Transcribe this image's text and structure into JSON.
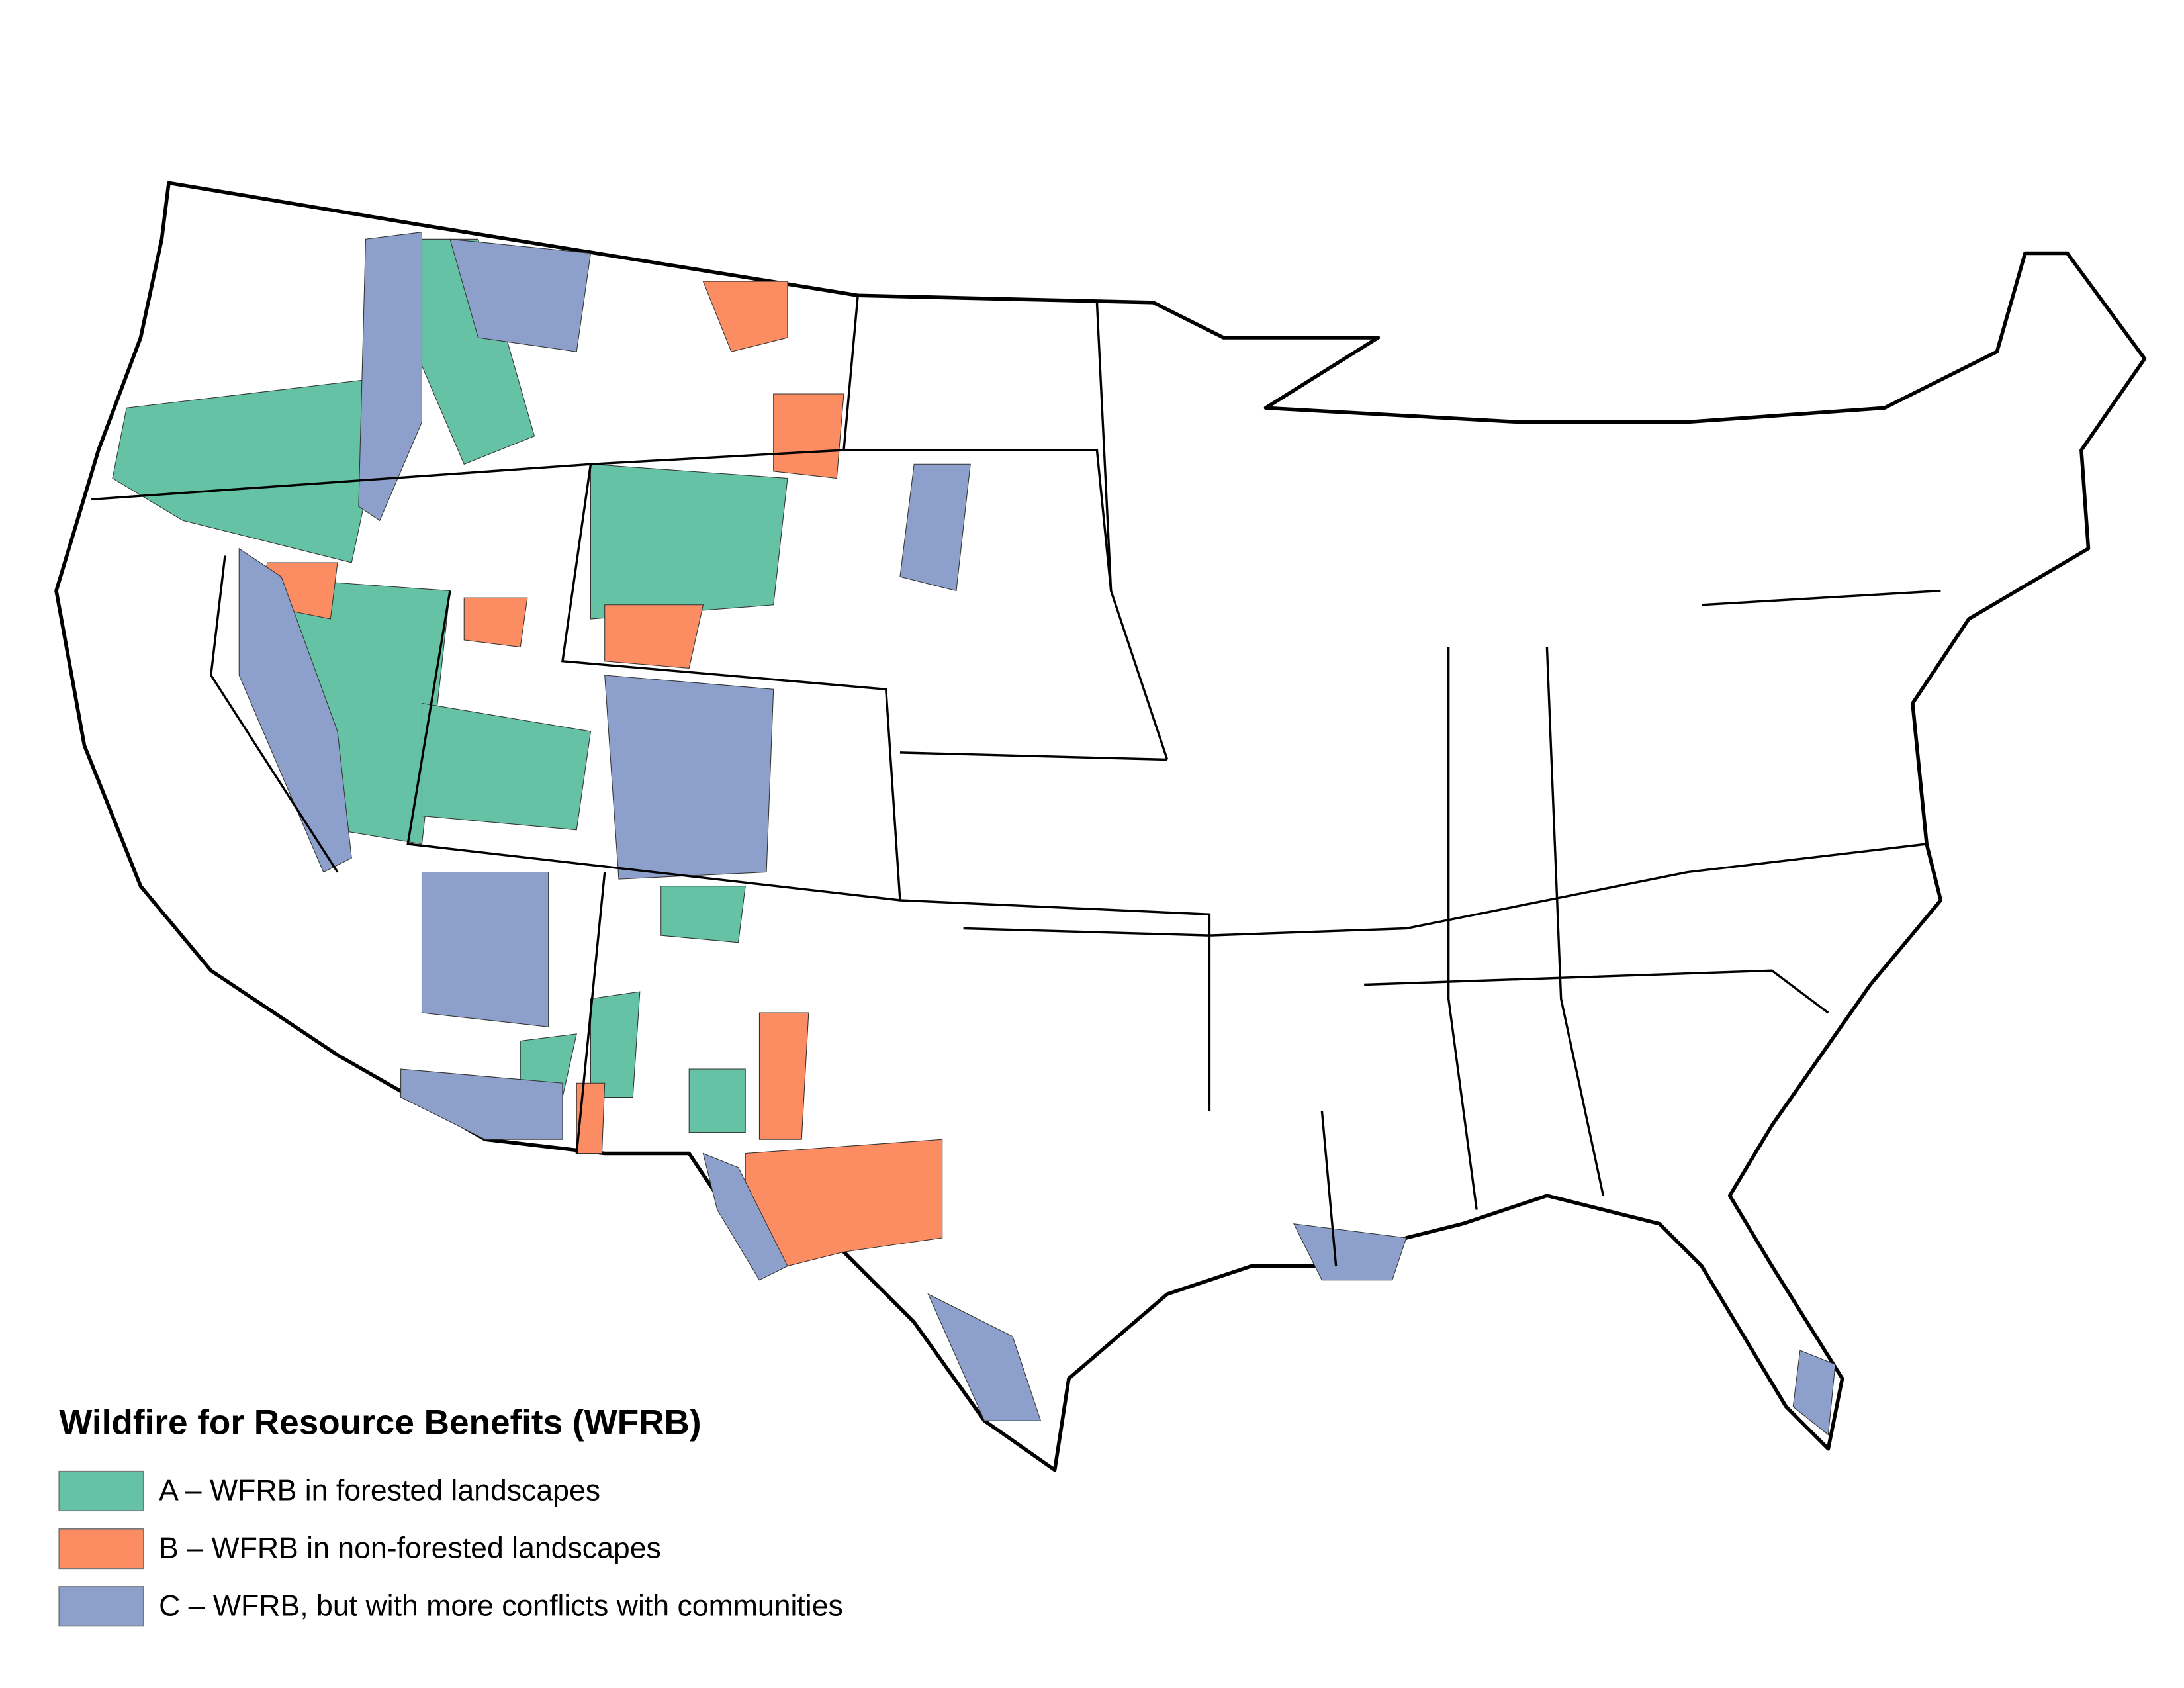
{
  "legend": {
    "title": "Wildfire for Resource Benefits (WFRB)",
    "items": [
      {
        "label": "A – WFRB in forested landscapes",
        "color": "#66c2a5"
      },
      {
        "label": "B – WFRB in non-forested landscapes",
        "color": "#fc8d62"
      },
      {
        "label": "C – WFRB, but with more conflicts with communities",
        "color": "#8da0cb"
      }
    ]
  }
}
